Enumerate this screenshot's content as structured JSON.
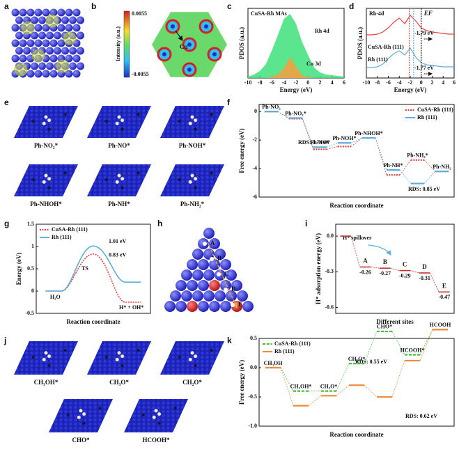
{
  "panel_letters": [
    "a",
    "b",
    "c",
    "d",
    "e",
    "f",
    "g",
    "h",
    "i",
    "j",
    "k"
  ],
  "panel_b": {
    "colorbar_max": "0.0055",
    "colorbar_min": "-0.0055",
    "colorbar_label": "Intensity (a.u.)",
    "atom_label": "Cu"
  },
  "panel_e": {
    "labels": [
      "Ph-NO₂*",
      "Ph-NO*",
      "Ph-NOH*",
      "Ph-NHOH*",
      "Ph-NH*",
      "Ph-NH₂*"
    ]
  },
  "panel_h": {
    "labels": [
      "A",
      "B",
      "C",
      "D",
      "E"
    ]
  },
  "panel_j": {
    "labels": [
      "CH₃OH*",
      "CH₃O*",
      "CH₂O*",
      "CHO*",
      "HCOOH*"
    ]
  },
  "chart_data": [
    {
      "type": "area",
      "title": "CuSA-Rh MAs",
      "xlabel": "Energy (eV)",
      "ylabel": "PDOS (a.u.)",
      "x": [
        -10,
        -9,
        -8,
        -7,
        -6,
        -5,
        -4,
        -3,
        -2,
        -1,
        0,
        1,
        2,
        3,
        4,
        5,
        6
      ],
      "xlim": [
        -10,
        6
      ],
      "xticks": [
        -10,
        -8,
        -6,
        -4,
        -2,
        0,
        2,
        4,
        6
      ],
      "ylim": [
        0,
        1
      ],
      "series": [
        {
          "name": "Rh 4d",
          "color": "#3ee07a",
          "values": [
            0.02,
            0.05,
            0.1,
            0.2,
            0.4,
            0.62,
            0.85,
            0.92,
            0.78,
            0.52,
            0.33,
            0.15,
            0.08,
            0.05,
            0.04,
            0.03,
            0.02
          ]
        },
        {
          "name": "Cu 3d",
          "color": "#f0a040",
          "values": [
            0,
            0,
            0,
            0,
            0.02,
            0.05,
            0.14,
            0.3,
            0.16,
            0.04,
            0.01,
            0,
            0,
            0,
            0,
            0,
            0
          ]
        }
      ]
    },
    {
      "type": "line",
      "title": "Rh-4d",
      "xlabel": "Energy (eV)",
      "ylabel": "PDOS (a.u.)",
      "x": [
        -10,
        -9,
        -8,
        -7,
        -6,
        -5,
        -4,
        -3,
        -2,
        -1,
        0,
        1,
        2,
        3,
        4,
        5,
        6
      ],
      "xlim": [
        -10,
        6
      ],
      "xticks": [
        -10,
        -8,
        -6,
        -4,
        -2,
        0,
        2,
        4,
        6
      ],
      "ylim": [
        0,
        1
      ],
      "fermi_level": 0,
      "fermi_label": "EF",
      "band_centers": [
        {
          "value": -1.79,
          "label": "-1.79 eV"
        },
        {
          "value": -1.77,
          "label": "-1.77 eV"
        }
      ],
      "series": [
        {
          "name": "CuSA-Rh (111)",
          "color": "#e8423f",
          "values": [
            0.62,
            0.62,
            0.63,
            0.66,
            0.72,
            0.8,
            0.86,
            0.78,
            0.9,
            0.82,
            0.72,
            0.68,
            0.66,
            0.65,
            0.64,
            0.63,
            0.63
          ]
        },
        {
          "name": "Rh (111)",
          "color": "#5aaee0",
          "values": [
            0.15,
            0.15,
            0.16,
            0.2,
            0.28,
            0.35,
            0.39,
            0.33,
            0.43,
            0.3,
            0.22,
            0.19,
            0.18,
            0.17,
            0.16,
            0.16,
            0.16
          ]
        }
      ]
    },
    {
      "type": "step",
      "xlabel": "Reaction coordinate",
      "ylabel": "Free energy (eV)",
      "categories": [
        "Ph-NO₂",
        "Ph-NO₂*",
        "Ph-NO*",
        "Ph-NOH*",
        "Ph-NHOH*",
        "Ph-NH*",
        "Ph-NH₂*",
        "Ph-NH₂"
      ],
      "ylim": [
        -6,
        0.5
      ],
      "yticks": [
        -6,
        -4,
        -2,
        0
      ],
      "legend": "upper right",
      "series": [
        {
          "name": "CuSA-Rh (111)",
          "color": "#e8423f",
          "style": "dotted",
          "values": [
            0,
            -0.5,
            -2.65,
            -2.45,
            -1.85,
            -4.45,
            -3.4,
            -4.2
          ]
        },
        {
          "name": "Rh (111)",
          "color": "#5aaee0",
          "style": "solid",
          "values": [
            0,
            -0.45,
            -2.5,
            -2.2,
            -1.85,
            -4.1,
            -5.05,
            -4.2
          ]
        }
      ],
      "annotations": [
        {
          "text": "RDS: 0.74 eV",
          "color": "#e8423f"
        },
        {
          "text": "RDS: 0.85 eV",
          "color": "#5aaee0"
        }
      ]
    },
    {
      "type": "profile",
      "xlabel": "Reaction coordinate",
      "ylabel": "Energy (eV)",
      "categories": [
        "H₂O",
        "TS",
        "H* + OH*"
      ],
      "ylim": [
        -0.5,
        1.5
      ],
      "yticks": [
        -0.5,
        0,
        0.5,
        1,
        1.5
      ],
      "legend": "upper left",
      "series": [
        {
          "name": "CuSA-Rh (111)",
          "color": "#e8423f",
          "style": "dotted",
          "values": [
            0,
            0.83,
            -0.25
          ],
          "value_labels": [
            null,
            "0.83 eV",
            null
          ]
        },
        {
          "name": "Rh (111)",
          "color": "#5aaee0",
          "style": "solid",
          "values": [
            0,
            1.01,
            0.2
          ],
          "value_labels": [
            null,
            "1.01 eV",
            null
          ]
        }
      ]
    },
    {
      "type": "levels",
      "xlabel": "Different sites",
      "ylabel": "H* adsorption energy (eV)",
      "categories": [
        null,
        "A",
        "B",
        "C",
        "D",
        "E"
      ],
      "values": [
        0,
        -0.26,
        -0.27,
        -0.29,
        -0.31,
        -0.47
      ],
      "ylim": [
        -0.65,
        0.1
      ],
      "yticks": [
        {
          "value": 0,
          "label": "0.0"
        },
        -0.3,
        -0.6
      ],
      "color": "#c8322b",
      "label_color": "#e8a33c",
      "annotations": [
        {
          "text": "H* spillover",
          "color": "#e0505a"
        }
      ]
    },
    {
      "type": "step",
      "xlabel": "Reaction coordinate",
      "ylabel": "Free energy (eV)",
      "categories": [
        "CH₃OH",
        "CH₃OH*",
        "CH₃O*",
        "CH₂O*",
        "CHO*",
        "HCOOH*",
        "HCOOH"
      ],
      "ylim": [
        -1,
        0.5
      ],
      "yticks": [
        {
          "value": -1,
          "label": "-1.0"
        },
        -0.5,
        {
          "value": 0,
          "label": "0.0"
        },
        0.5
      ],
      "legend": "upper left",
      "series": [
        {
          "name": "CuSA-Rh (111)",
          "color": "#3cc43c",
          "style": "dashed",
          "values": [
            0,
            -0.4,
            -0.4,
            0.07,
            0.62,
            0.22,
            0.65
          ]
        },
        {
          "name": "Rh (111)",
          "color": "#f08a3c",
          "style": "solid",
          "values": [
            0,
            -0.65,
            -0.48,
            -0.3,
            -0.5,
            0.12,
            0.65
          ]
        }
      ],
      "annotations": [
        {
          "text": "RDS: 0.55 eV",
          "color": "#3cc43c"
        },
        {
          "text": "RDS: 0.62 eV",
          "color": "#f08a3c"
        }
      ]
    }
  ]
}
